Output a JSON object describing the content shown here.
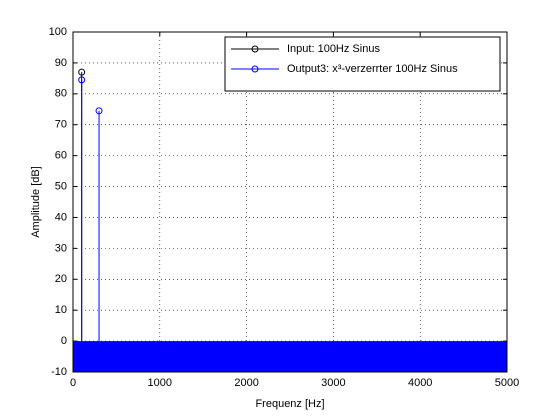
{
  "chart_data": {
    "type": "stem",
    "xlabel": "Frequenz [Hz]",
    "ylabel": "Amplitude [dB]",
    "xlim": [
      0,
      5000
    ],
    "xticks": [
      0,
      1000,
      2000,
      3000,
      4000,
      5000
    ],
    "ylim": [
      -10,
      100
    ],
    "yticks": [
      -10,
      0,
      10,
      20,
      30,
      40,
      50,
      60,
      70,
      80,
      90,
      100
    ],
    "grid": true,
    "legend": "upper right",
    "series": [
      {
        "name": "Input: 100Hz Sinus",
        "color": "#000000",
        "x": [
          100
        ],
        "values": [
          87
        ]
      },
      {
        "name": "Output3: x³-verzerrter 100Hz Sinus",
        "color": "#0000ff",
        "x": [
          100,
          300
        ],
        "values": [
          84.5,
          74.5
        ]
      }
    ]
  }
}
